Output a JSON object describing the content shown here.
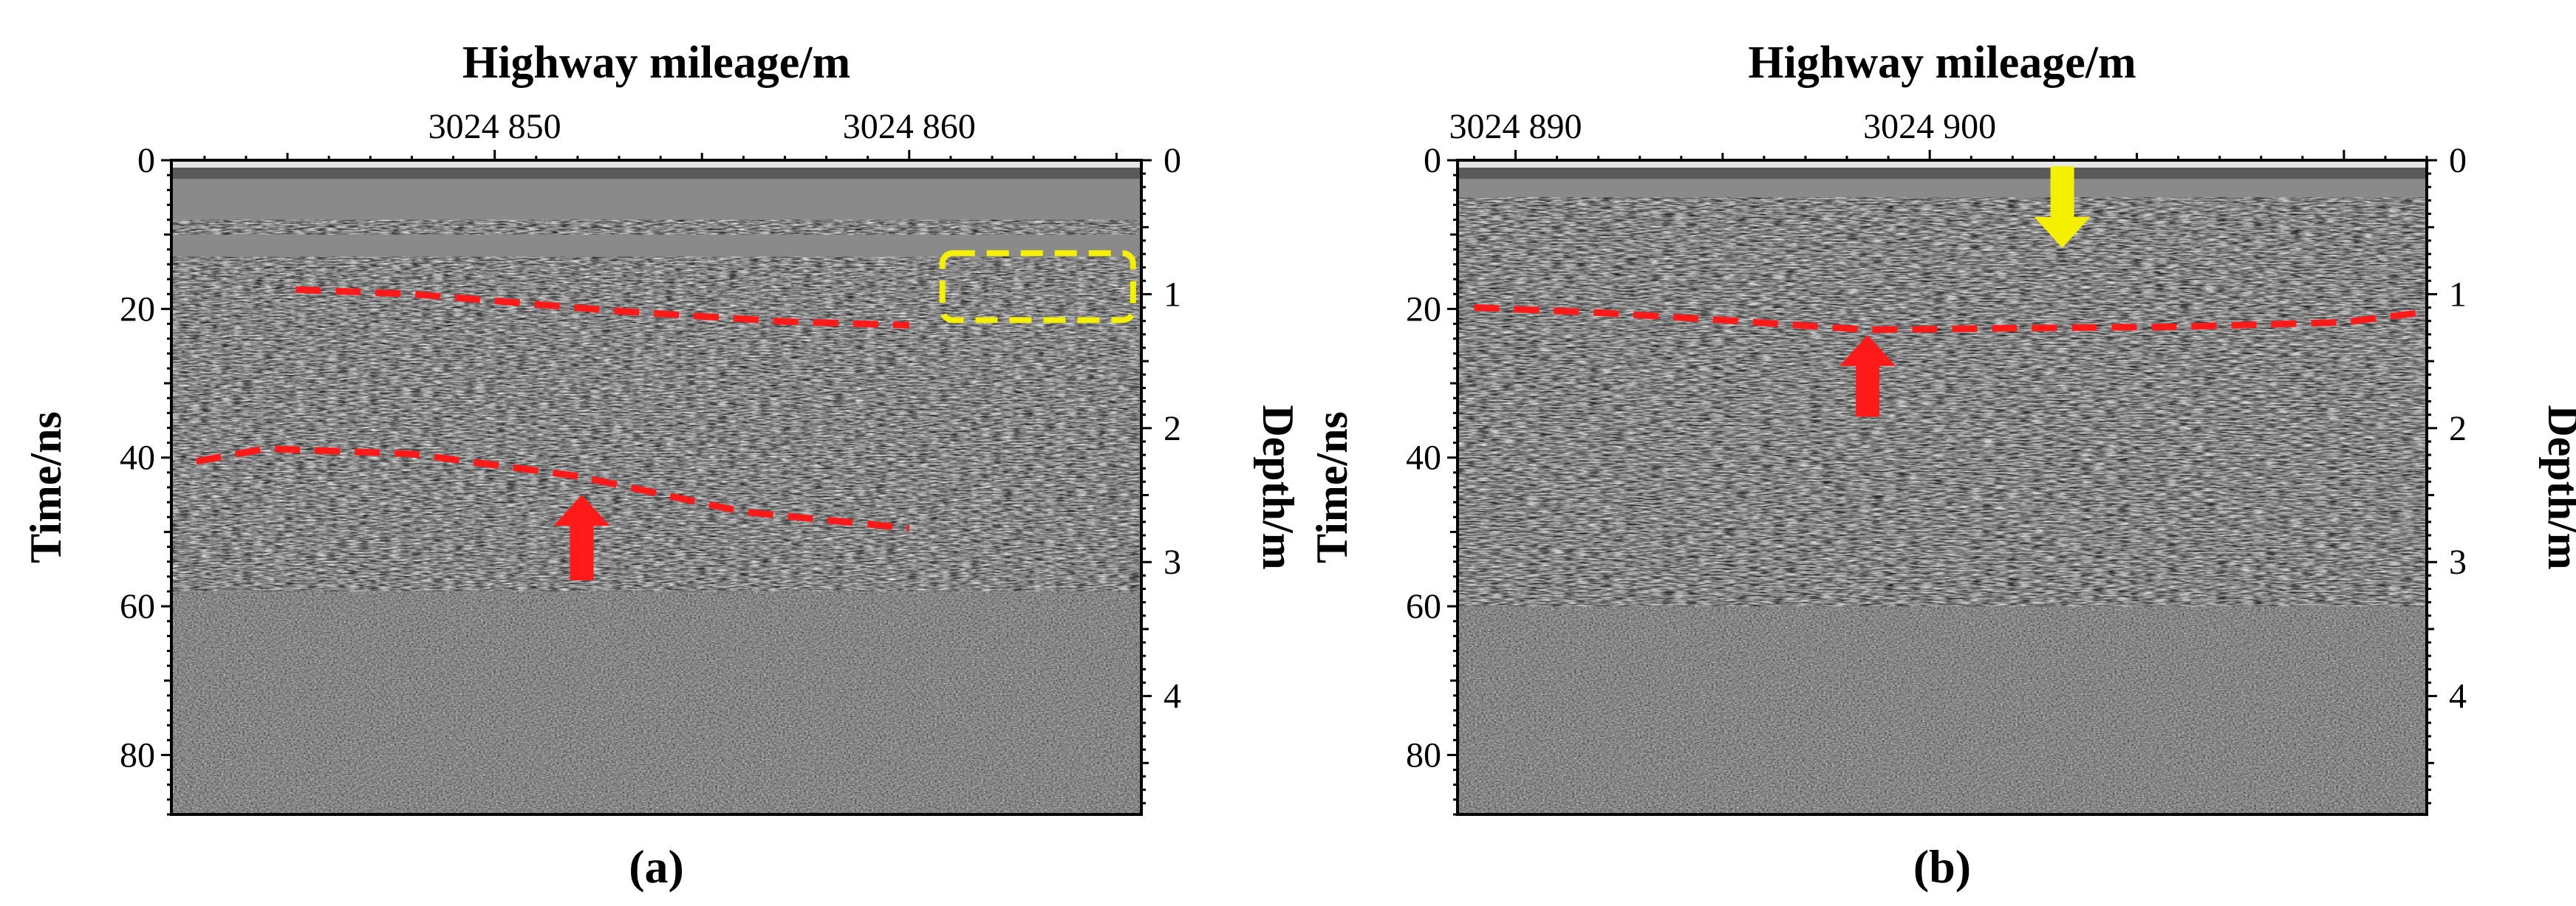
{
  "figure": {
    "colors": {
      "interface_line": "#ff1a1a",
      "arrow_red": "#ff1a1a",
      "arrow_yellow": "#f5f000",
      "box_yellow": "#f5f000",
      "radargram_dark": "#111111",
      "radargram_light": "#e8e8e8"
    }
  },
  "chart_data": [
    {
      "type": "radargram",
      "panel_label": "(a)",
      "title": "Highway mileage/m",
      "ylabel_left": "Time/ns",
      "ylabel_right": "Depth/m",
      "x_range": [
        3024842.2,
        3024865.6
      ],
      "x_ticks": [
        {
          "value": 3024850,
          "label": "3024 850"
        },
        {
          "value": 3024860,
          "label": "3024 860"
        }
      ],
      "time_range": [
        0,
        88
      ],
      "time_ticks": [
        {
          "value": 0,
          "label": "0"
        },
        {
          "value": 20,
          "label": "20"
        },
        {
          "value": 40,
          "label": "40"
        },
        {
          "value": 60,
          "label": "60"
        },
        {
          "value": 80,
          "label": "80"
        }
      ],
      "depth_ticks": [
        {
          "value": 0,
          "label": "0"
        },
        {
          "value": 1,
          "label": "1"
        },
        {
          "value": 2,
          "label": "2"
        },
        {
          "value": 3,
          "label": "3"
        },
        {
          "value": 4,
          "label": "4"
        }
      ],
      "depth_per_ns": 0.0555,
      "interfaces": [
        {
          "name": "upper-interface",
          "points": [
            [
              3024845.2,
              17.4
            ],
            [
              3024848,
              18
            ],
            [
              3024853,
              20.3
            ],
            [
              3024857,
              21.7
            ],
            [
              3024860,
              22.2
            ]
          ]
        },
        {
          "name": "lower-interface",
          "points": [
            [
              3024842.8,
              40.5
            ],
            [
              3024844.5,
              38.8
            ],
            [
              3024848,
              39.5
            ],
            [
              3024852,
              42.5
            ],
            [
              3024856,
              47.3
            ],
            [
              3024860,
              49.5
            ]
          ]
        }
      ],
      "arrows": [
        {
          "name": "red-up-arrow",
          "x": 3024852.1,
          "t_tip": 45,
          "t_tail": 56.5,
          "direction": "up",
          "color_key": "arrow_red"
        }
      ],
      "boxes": [
        {
          "name": "yellow-dashed-box",
          "x0": 3024860.8,
          "x1": 3024865.4,
          "t0": 12.5,
          "t1": 21.5,
          "color_key": "box_yellow"
        }
      ],
      "radargram": {
        "seed": 11,
        "reflection_bands": [
          [
            8,
            10
          ],
          [
            13,
            17
          ],
          [
            17,
            40
          ],
          [
            40,
            58
          ]
        ]
      }
    },
    {
      "type": "radargram",
      "panel_label": "(b)",
      "title": "Highway mileage/m",
      "ylabel_left": "Time/ns",
      "ylabel_right": "Depth/m",
      "x_range": [
        3024888.6,
        3024912.0
      ],
      "x_ticks": [
        {
          "value": 3024890,
          "label": "3024 890"
        },
        {
          "value": 3024900,
          "label": "3024 900"
        }
      ],
      "time_range": [
        0,
        88
      ],
      "time_ticks": [
        {
          "value": 0,
          "label": "0"
        },
        {
          "value": 20,
          "label": "20"
        },
        {
          "value": 40,
          "label": "40"
        },
        {
          "value": 60,
          "label": "60"
        },
        {
          "value": 80,
          "label": "80"
        }
      ],
      "depth_ticks": [
        {
          "value": 0,
          "label": "0"
        },
        {
          "value": 1,
          "label": "1"
        },
        {
          "value": 2,
          "label": "2"
        },
        {
          "value": 3,
          "label": "3"
        },
        {
          "value": 4,
          "label": "4"
        }
      ],
      "depth_per_ns": 0.0555,
      "interfaces": [
        {
          "name": "interface",
          "points": [
            [
              3024889,
              19.8
            ],
            [
              3024892,
              20.5
            ],
            [
              3024895,
              21.5
            ],
            [
              3024898.5,
              22.8
            ],
            [
              3024902,
              22.6
            ],
            [
              3024906,
              22.4
            ],
            [
              3024910,
              21.8
            ],
            [
              3024912,
              20.4
            ]
          ]
        }
      ],
      "arrows": [
        {
          "name": "red-up-arrow",
          "x": 3024898.5,
          "t_tip": 23.5,
          "t_tail": 34.5,
          "direction": "up",
          "color_key": "arrow_red"
        },
        {
          "name": "yellow-down-arrow",
          "x": 3024903.2,
          "t_tip": 11.8,
          "t_tail": 0.8,
          "direction": "down",
          "color_key": "arrow_yellow"
        }
      ],
      "boxes": [],
      "radargram": {
        "seed": 29,
        "reflection_bands": [
          [
            5,
            9
          ],
          [
            9,
            20
          ],
          [
            20,
            40
          ],
          [
            40,
            60
          ]
        ]
      }
    }
  ]
}
